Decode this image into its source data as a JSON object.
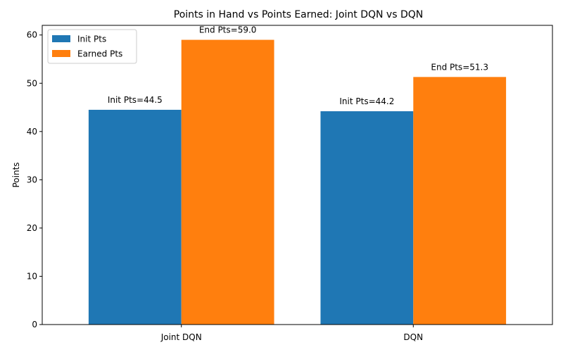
{
  "chart_data": {
    "type": "bar",
    "title": "Points in Hand vs Points Earned: Joint DQN vs DQN",
    "xlabel": "",
    "ylabel": "Points",
    "categories": [
      "Joint DQN",
      "DQN"
    ],
    "series": [
      {
        "name": "Init Pts",
        "color": "#1f77b4",
        "values": [
          44.5,
          44.2
        ],
        "labels": [
          "Init Pts=44.5",
          "Init Pts=44.2"
        ]
      },
      {
        "name": "Earned Pts",
        "color": "#ff7f0e",
        "values": [
          59.0,
          51.3
        ],
        "labels": [
          "End Pts=59.0",
          "End Pts=51.3"
        ]
      }
    ],
    "ylim": [
      0,
      62
    ],
    "yticks": [
      0,
      10,
      20,
      30,
      40,
      50,
      60
    ],
    "grid": false,
    "legend_position": "top-left"
  }
}
